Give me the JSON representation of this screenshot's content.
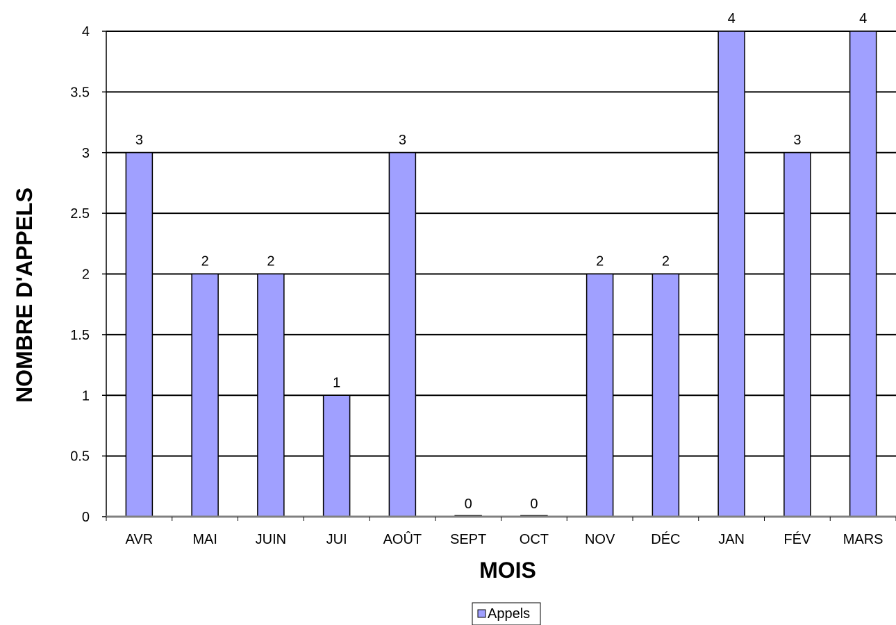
{
  "chart_data": {
    "type": "bar",
    "categories": [
      "AVR",
      "MAI",
      "JUIN",
      "JUI",
      "AOÛT",
      "SEPT",
      "OCT",
      "NOV",
      "DÉC",
      "JAN",
      "FÉV",
      "MARS"
    ],
    "series": [
      {
        "name": "Appels",
        "values": [
          3,
          2,
          2,
          1,
          3,
          0,
          0,
          2,
          2,
          4,
          3,
          4
        ],
        "color": "#a0a0ff"
      }
    ],
    "data_labels": [
      "3",
      "2",
      "2",
      "1",
      "3",
      "0",
      "0",
      "2",
      "2",
      "4",
      "3",
      "4"
    ],
    "title": "",
    "xlabel": "MOIS",
    "ylabel": "NOMBRE D'APPELS",
    "ylim": [
      0,
      4
    ],
    "y_ticks": [
      0,
      0.5,
      1,
      1.5,
      2,
      2.5,
      3,
      3.5,
      4
    ],
    "y_tick_labels": [
      "0",
      "0.5",
      "1",
      "1.5",
      "2",
      "2.5",
      "3",
      "3.5",
      "4"
    ],
    "grid": true,
    "legend": {
      "placement": "bottom-center",
      "entries": [
        "Appels"
      ]
    }
  }
}
